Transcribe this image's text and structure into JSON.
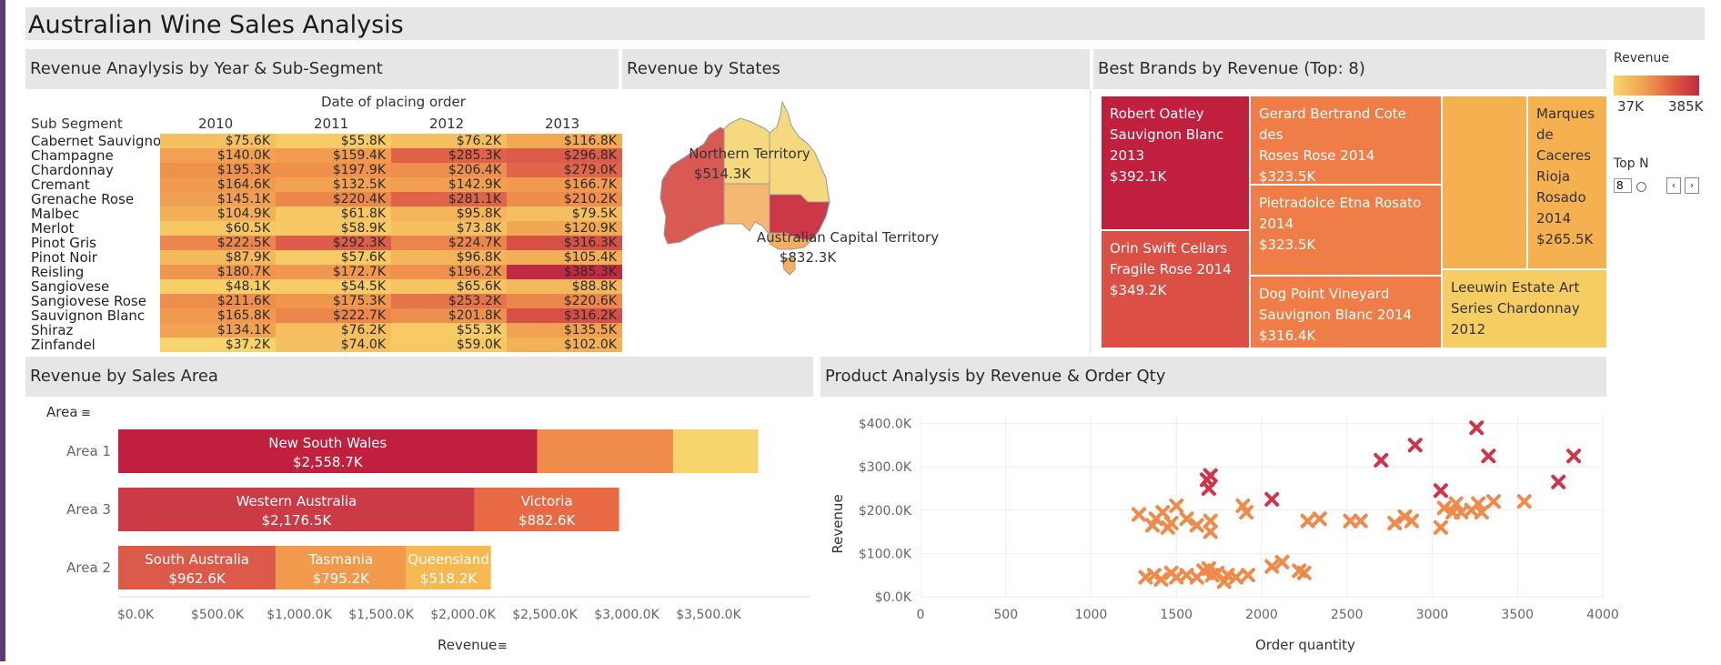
{
  "dashboard_title": "Australian Wine Sales Analysis",
  "colors": {
    "low": "#f8d56a",
    "mid_low": "#f2a552",
    "mid": "#ee8d4c",
    "mid_high": "#dc5a4a",
    "high": "#c12a42"
  },
  "heatmap": {
    "title": "Revenue Anaylysis by Year & Sub-Segment",
    "column_header": "Date of placing order",
    "row_header": "Sub Segment",
    "years": [
      "2010",
      "2011",
      "2012",
      "2013"
    ],
    "rows": [
      {
        "name": "Cabernet Sauvignon",
        "values": [
          75.6,
          55.8,
          76.2,
          116.8
        ],
        "labels": [
          "$75.6K",
          "$55.8K",
          "$76.2K",
          "$116.8K"
        ]
      },
      {
        "name": "Champagne",
        "values": [
          140.0,
          159.4,
          285.3,
          296.8
        ],
        "labels": [
          "$140.0K",
          "$159.4K",
          "$285.3K",
          "$296.8K"
        ]
      },
      {
        "name": "Chardonnay",
        "values": [
          195.3,
          197.9,
          206.4,
          279.0
        ],
        "labels": [
          "$195.3K",
          "$197.9K",
          "$206.4K",
          "$279.0K"
        ]
      },
      {
        "name": "Cremant",
        "values": [
          164.6,
          132.5,
          142.9,
          166.7
        ],
        "labels": [
          "$164.6K",
          "$132.5K",
          "$142.9K",
          "$166.7K"
        ]
      },
      {
        "name": "Grenache Rose",
        "values": [
          145.1,
          220.4,
          281.1,
          210.2
        ],
        "labels": [
          "$145.1K",
          "$220.4K",
          "$281.1K",
          "$210.2K"
        ]
      },
      {
        "name": "Malbec",
        "values": [
          104.9,
          61.8,
          95.8,
          79.5
        ],
        "labels": [
          "$104.9K",
          "$61.8K",
          "$95.8K",
          "$79.5K"
        ]
      },
      {
        "name": "Merlot",
        "values": [
          60.5,
          58.9,
          73.8,
          120.9
        ],
        "labels": [
          "$60.5K",
          "$58.9K",
          "$73.8K",
          "$120.9K"
        ]
      },
      {
        "name": "Pinot Gris",
        "values": [
          222.5,
          292.3,
          224.7,
          316.3
        ],
        "labels": [
          "$222.5K",
          "$292.3K",
          "$224.7K",
          "$316.3K"
        ]
      },
      {
        "name": "Pinot Noir",
        "values": [
          87.9,
          57.6,
          96.8,
          105.4
        ],
        "labels": [
          "$87.9K",
          "$57.6K",
          "$96.8K",
          "$105.4K"
        ]
      },
      {
        "name": "Reisling",
        "values": [
          180.7,
          172.7,
          196.2,
          385.3
        ],
        "labels": [
          "$180.7K",
          "$172.7K",
          "$196.2K",
          "$385.3K"
        ]
      },
      {
        "name": "Sangiovese",
        "values": [
          48.1,
          54.5,
          65.6,
          88.8
        ],
        "labels": [
          "$48.1K",
          "$54.5K",
          "$65.6K",
          "$88.8K"
        ]
      },
      {
        "name": "Sangiovese Rose",
        "values": [
          211.6,
          175.3,
          253.2,
          220.6
        ],
        "labels": [
          "$211.6K",
          "$175.3K",
          "$253.2K",
          "$220.6K"
        ]
      },
      {
        "name": "Sauvignon Blanc",
        "values": [
          165.8,
          222.7,
          201.8,
          316.2
        ],
        "labels": [
          "$165.8K",
          "$222.7K",
          "$201.8K",
          "$316.2K"
        ]
      },
      {
        "name": "Shiraz",
        "values": [
          134.1,
          76.2,
          55.3,
          135.5
        ],
        "labels": [
          "$134.1K",
          "$76.2K",
          "$55.3K",
          "$135.5K"
        ]
      },
      {
        "name": "Zinfandel",
        "values": [
          37.2,
          74.0,
          59.0,
          102.0
        ],
        "labels": [
          "$37.2K",
          "$74.0K",
          "$59.0K",
          "$102.0K"
        ]
      }
    ]
  },
  "map": {
    "title": "Revenue by States",
    "labels": [
      {
        "name": "Northern Territory",
        "value": "$514.3K"
      },
      {
        "name": "Australian Capital Territory",
        "value": "$832.3K"
      }
    ]
  },
  "treemap": {
    "title": "Best Brands by Revenue (Top: 8)",
    "items": [
      {
        "name": "Robert Oatley Sauvignon Blanc 2013",
        "value": "$392.1K",
        "lines": [
          "Robert Oatley",
          "Sauvignon Blanc",
          "2013",
          "$392.1K"
        ],
        "color": "#c01f3e"
      },
      {
        "name": "Orin Swift Cellars Fragile Rose 2014",
        "value": "$349.2K",
        "lines": [
          "Orin Swift Cellars",
          "Fragile Rose 2014",
          "$349.2K"
        ],
        "color": "#dc4f44"
      },
      {
        "name": "Gerard Bertrand Cote des Roses Rose 2014",
        "value": "$323.5K",
        "lines": [
          "Gerard Bertrand Cote des",
          "Roses Rose 2014",
          "$323.5K"
        ],
        "color": "#ee7d48"
      },
      {
        "name": "Pietradolce Etna Rosato 2014",
        "value": "$323.5K",
        "lines": [
          "Pietradolce Etna Rosato",
          "2014",
          "$323.5K"
        ],
        "color": "#ee7d48"
      },
      {
        "name": "Dog Point Vineyard Sauvignon Blanc 2014",
        "value": "$316.4K",
        "lines": [
          "Dog Point Vineyard",
          "Sauvignon Blanc 2014",
          "$316.4K"
        ],
        "color": "#ee7d48"
      },
      {
        "name": "unlabeled",
        "value": "",
        "lines": [],
        "color": "#f5b04f"
      },
      {
        "name": "Marques de Caceres Rioja Rosado 2014",
        "value": "$265.5K",
        "lines": [
          "Marques",
          "de",
          "Caceres",
          "Rioja",
          "Rosado",
          "2014",
          "$265.5K"
        ],
        "color": "#f5b04f"
      },
      {
        "name": "Leeuwin Estate Art Series Chardonnay 2012",
        "value": "",
        "lines": [
          "Leeuwin Estate Art",
          "Series Chardonnay",
          "2012"
        ],
        "color": "#f6cd63"
      }
    ]
  },
  "legend": {
    "title": "Revenue",
    "min_label": "37K",
    "max_label": "385K",
    "topn_label": "Top N",
    "topn_value": "8",
    "prev_glyph": "‹",
    "next_glyph": "›"
  },
  "sales_area": {
    "title": "Revenue by Sales Area",
    "axis_field": "Area",
    "sort_glyph": "≡",
    "xlabel": "Revenue",
    "ticks": [
      "$0.0K",
      "$500.0K",
      "$1,000.0K",
      "$1,500.0K",
      "$2,000.0K",
      "$2,500.0K",
      "$3,000.0K",
      "$3,500.0K"
    ]
  },
  "chart_data": [
    {
      "type": "bar",
      "title": "Revenue by Sales Area",
      "xlabel": "Revenue",
      "ylabel": "Area",
      "xlim": [
        0,
        4000
      ],
      "units": "thousands of dollars",
      "categories": [
        "Area 1",
        "Area 3",
        "Area 2"
      ],
      "stacked": true,
      "segments": [
        [
          {
            "label": "New South Wales",
            "value": 2558.7,
            "value_label": "$2,558.7K",
            "color": "#c01f3e"
          },
          {
            "label": "",
            "value": 830,
            "value_label": "",
            "color": "#ef8c4c"
          },
          {
            "label": "",
            "value": 520,
            "value_label": "",
            "color": "#f5d46c"
          }
        ],
        [
          {
            "label": "Western Australia",
            "value": 2176.5,
            "value_label": "$2,176.5K",
            "color": "#cc3a46"
          },
          {
            "label": "Victoria",
            "value": 882.6,
            "value_label": "$882.6K",
            "color": "#e76a45"
          }
        ],
        [
          {
            "label": "South Australia",
            "value": 962.6,
            "value_label": "$962.6K",
            "color": "#dc5a4a"
          },
          {
            "label": "Tasmania",
            "value": 795.2,
            "value_label": "$795.2K",
            "color": "#f29a4c"
          },
          {
            "label": "Queensland",
            "value": 518.2,
            "value_label": "$518.2K",
            "color": "#f6b952"
          }
        ]
      ]
    },
    {
      "type": "scatter",
      "title": "Product Analysis by Revenue & Order Qty",
      "xlabel": "Order quantity",
      "ylabel": "Revenue",
      "xlim": [
        0,
        4000
      ],
      "ylim": [
        0,
        420
      ],
      "xticks": [
        "0",
        "500",
        "1000",
        "1500",
        "2000",
        "2500",
        "3000",
        "3500",
        "4000"
      ],
      "yticks": [
        "$0.0K",
        "$100.0K",
        "$200.0K",
        "$300.0K",
        "$400.0K"
      ],
      "high_points": [
        [
          1680,
          270
        ],
        [
          1690,
          250
        ],
        [
          1700,
          280
        ],
        [
          2060,
          225
        ],
        [
          2700,
          315
        ],
        [
          2900,
          350
        ],
        [
          3050,
          245
        ],
        [
          3260,
          390
        ],
        [
          3330,
          325
        ],
        [
          3740,
          265
        ],
        [
          3830,
          325
        ]
      ],
      "low_points": [
        [
          1280,
          190
        ],
        [
          1360,
          165
        ],
        [
          1380,
          180
        ],
        [
          1420,
          195
        ],
        [
          1450,
          160
        ],
        [
          1470,
          170
        ],
        [
          1500,
          210
        ],
        [
          1560,
          180
        ],
        [
          1620,
          165
        ],
        [
          1700,
          175
        ],
        [
          1700,
          150
        ],
        [
          1890,
          210
        ],
        [
          1910,
          195
        ],
        [
          2270,
          175
        ],
        [
          2340,
          180
        ],
        [
          2520,
          175
        ],
        [
          2580,
          175
        ],
        [
          2780,
          170
        ],
        [
          2840,
          185
        ],
        [
          2880,
          175
        ],
        [
          3050,
          160
        ],
        [
          3070,
          205
        ],
        [
          3120,
          195
        ],
        [
          3140,
          215
        ],
        [
          3170,
          195
        ],
        [
          3230,
          200
        ],
        [
          3270,
          215
        ],
        [
          3290,
          195
        ],
        [
          3360,
          220
        ],
        [
          3540,
          220
        ],
        [
          1320,
          45
        ],
        [
          1370,
          50
        ],
        [
          1410,
          40
        ],
        [
          1470,
          55
        ],
        [
          1500,
          45
        ],
        [
          1560,
          50
        ],
        [
          1620,
          45
        ],
        [
          1660,
          60
        ],
        [
          1690,
          65
        ],
        [
          1710,
          50
        ],
        [
          1740,
          55
        ],
        [
          1780,
          35
        ],
        [
          1800,
          50
        ],
        [
          1850,
          45
        ],
        [
          1920,
          50
        ],
        [
          2060,
          70
        ],
        [
          2120,
          80
        ],
        [
          2220,
          60
        ],
        [
          2250,
          55
        ]
      ]
    },
    {
      "type": "heatmap",
      "title": "Revenue Anaylysis by Year & Sub-Segment",
      "xlabel": "Date of placing order",
      "ylabel": "Sub Segment",
      "x": [
        "2010",
        "2011",
        "2012",
        "2013"
      ],
      "units": "thousands of dollars",
      "color_range": [
        37,
        385
      ]
    }
  ]
}
